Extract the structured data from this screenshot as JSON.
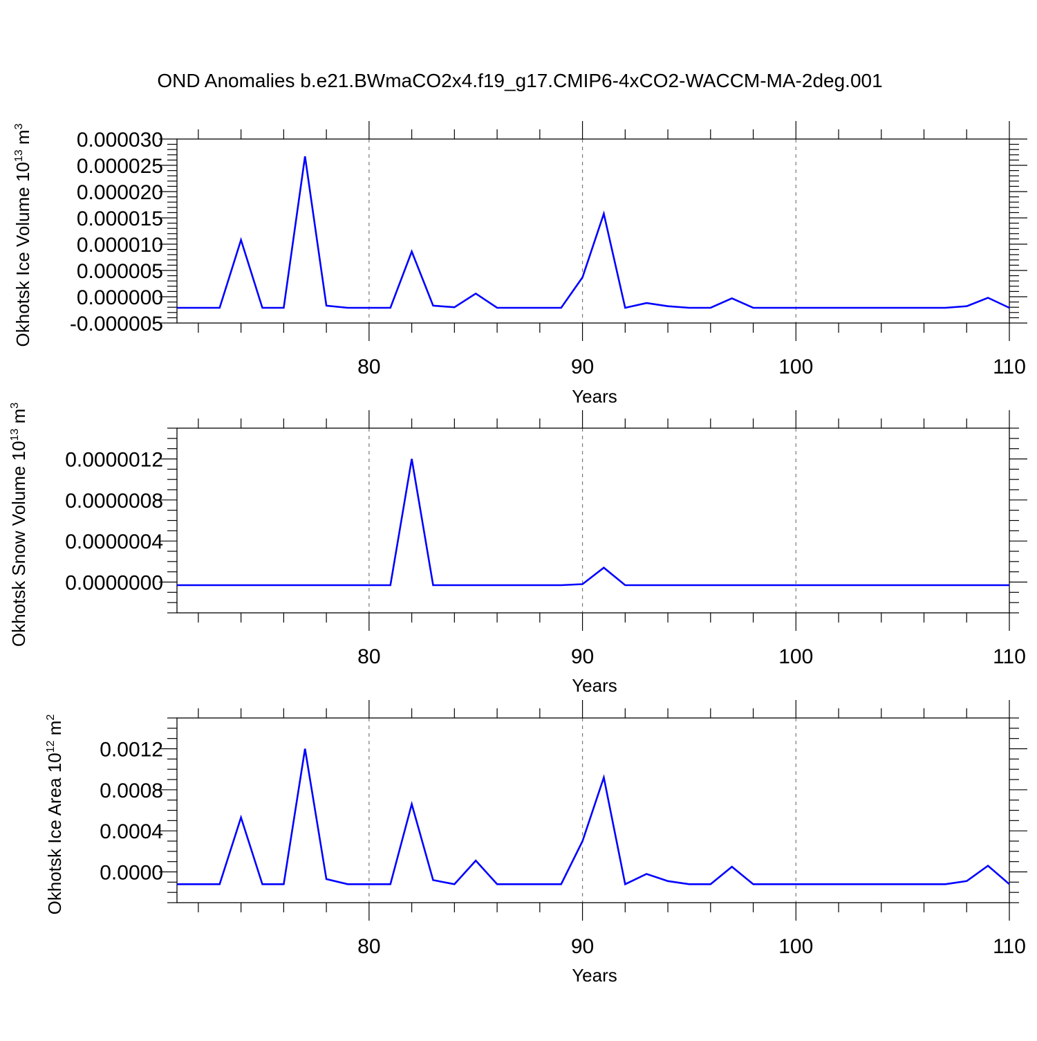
{
  "title": "OND Anomalies b.e21.BWmaCO2x4.f19_g17.CMIP6-4xCO2-WACCM-MA-2deg.001",
  "line_color": "#0000ff",
  "chart_data": [
    {
      "type": "line",
      "xlabel": "Years",
      "ylabel": "Okhotsk Ice Volume 10",
      "ylabel_exp": "13",
      "ylabel_unit": " m",
      "ylabel_unit_exp": "3",
      "xlim": [
        71,
        110
      ],
      "ylim": [
        -5e-06,
        3e-05
      ],
      "x_ticks": [
        80,
        90,
        100,
        110
      ],
      "y_ticks": [
        {
          "v": 3e-05,
          "label": "0.000030"
        },
        {
          "v": 2.5e-05,
          "label": "0.000025"
        },
        {
          "v": 2e-05,
          "label": "0.000020"
        },
        {
          "v": 1.5e-05,
          "label": "0.000015"
        },
        {
          "v": 1e-05,
          "label": "0.000010"
        },
        {
          "v": 5e-06,
          "label": "0.000005"
        },
        {
          "v": 0.0,
          "label": "0.000000"
        },
        {
          "v": -5e-06,
          "label": "-0.000005"
        }
      ],
      "y_minor_step": 1e-06,
      "grid": "dashed vertical at major x ticks",
      "x": [
        71,
        72,
        73,
        74,
        75,
        76,
        77,
        78,
        79,
        80,
        81,
        82,
        83,
        84,
        85,
        86,
        87,
        88,
        89,
        90,
        91,
        92,
        93,
        94,
        95,
        96,
        97,
        98,
        99,
        100,
        101,
        102,
        103,
        104,
        105,
        106,
        107,
        108,
        109,
        110
      ],
      "y": [
        -2.1e-06,
        -2.1e-06,
        -2.1e-06,
        1.08e-05,
        -2.1e-06,
        -2.1e-06,
        2.67e-05,
        -1.7e-06,
        -2.1e-06,
        -2.1e-06,
        -2.1e-06,
        8.6e-06,
        -1.7e-06,
        -2e-06,
        6e-07,
        -2.1e-06,
        -2.1e-06,
        -2.1e-06,
        -2.1e-06,
        3.7e-06,
        1.58e-05,
        -2.1e-06,
        -1.2e-06,
        -1.8e-06,
        -2.1e-06,
        -2.1e-06,
        -3e-07,
        -2.1e-06,
        -2.1e-06,
        -2.1e-06,
        -2.1e-06,
        -2.1e-06,
        -2.1e-06,
        -2.1e-06,
        -2.1e-06,
        -2.1e-06,
        -2.1e-06,
        -1.8e-06,
        -2e-07,
        -2.1e-06
      ]
    },
    {
      "type": "line",
      "xlabel": "Years",
      "ylabel": "Okhotsk Snow Volume 10",
      "ylabel_exp": "13",
      "ylabel_unit": " m",
      "ylabel_unit_exp": "3",
      "xlim": [
        71,
        110
      ],
      "ylim": [
        -3e-07,
        1.5e-06
      ],
      "x_ticks": [
        80,
        90,
        100,
        110
      ],
      "y_ticks": [
        {
          "v": 1.2e-06,
          "label": "0.0000012"
        },
        {
          "v": 8e-07,
          "label": "0.0000008"
        },
        {
          "v": 4e-07,
          "label": "0.0000004"
        },
        {
          "v": 0.0,
          "label": "0.0000000"
        }
      ],
      "y_minor_step": 1e-07,
      "grid": "dashed vertical at major x ticks",
      "x": [
        71,
        72,
        73,
        74,
        75,
        76,
        77,
        78,
        79,
        80,
        81,
        82,
        83,
        84,
        85,
        86,
        87,
        88,
        89,
        90,
        91,
        92,
        93,
        94,
        95,
        96,
        97,
        98,
        99,
        100,
        101,
        102,
        103,
        104,
        105,
        106,
        107,
        108,
        109,
        110
      ],
      "y": [
        -3e-08,
        -3e-08,
        -3e-08,
        -3e-08,
        -3e-08,
        -3e-08,
        -3e-08,
        -3e-08,
        -3e-08,
        -3e-08,
        -3e-08,
        1.2e-06,
        -3e-08,
        -3e-08,
        -3e-08,
        -3e-08,
        -3e-08,
        -3e-08,
        -3e-08,
        -2e-08,
        1.4e-07,
        -3e-08,
        -3e-08,
        -3e-08,
        -3e-08,
        -3e-08,
        -3e-08,
        -3e-08,
        -3e-08,
        -3e-08,
        -3e-08,
        -3e-08,
        -3e-08,
        -3e-08,
        -3e-08,
        -3e-08,
        -3e-08,
        -3e-08,
        -3e-08,
        -3e-08
      ]
    },
    {
      "type": "line",
      "xlabel": "Years",
      "ylabel": "Okhotsk Ice Area 10",
      "ylabel_exp": "12",
      "ylabel_unit": " m",
      "ylabel_unit_exp": "2",
      "xlim": [
        71,
        110
      ],
      "ylim": [
        -0.0003,
        0.0015
      ],
      "x_ticks": [
        80,
        90,
        100,
        110
      ],
      "y_ticks": [
        {
          "v": 0.0012,
          "label": "0.0012"
        },
        {
          "v": 0.0008,
          "label": "0.0008"
        },
        {
          "v": 0.0004,
          "label": "0.0004"
        },
        {
          "v": 0.0,
          "label": "0.0000"
        }
      ],
      "y_minor_step": 0.0001,
      "grid": "dashed vertical at major x ticks",
      "x": [
        71,
        72,
        73,
        74,
        75,
        76,
        77,
        78,
        79,
        80,
        81,
        82,
        83,
        84,
        85,
        86,
        87,
        88,
        89,
        90,
        91,
        92,
        93,
        94,
        95,
        96,
        97,
        98,
        99,
        100,
        101,
        102,
        103,
        104,
        105,
        106,
        107,
        108,
        109,
        110
      ],
      "y": [
        -0.00012,
        -0.00012,
        -0.00012,
        0.00053,
        -0.00012,
        -0.00012,
        0.0012,
        -7e-05,
        -0.00012,
        -0.00012,
        -0.00012,
        0.00066,
        -8e-05,
        -0.00012,
        0.00011,
        -0.00012,
        -0.00012,
        -0.00012,
        -0.00012,
        0.0003,
        0.00092,
        -0.00012,
        -2e-05,
        -9e-05,
        -0.00012,
        -0.00012,
        5e-05,
        -0.00012,
        -0.00012,
        -0.00012,
        -0.00012,
        -0.00012,
        -0.00012,
        -0.00012,
        -0.00012,
        -0.00012,
        -0.00012,
        -9e-05,
        6e-05,
        -0.00012
      ]
    }
  ]
}
